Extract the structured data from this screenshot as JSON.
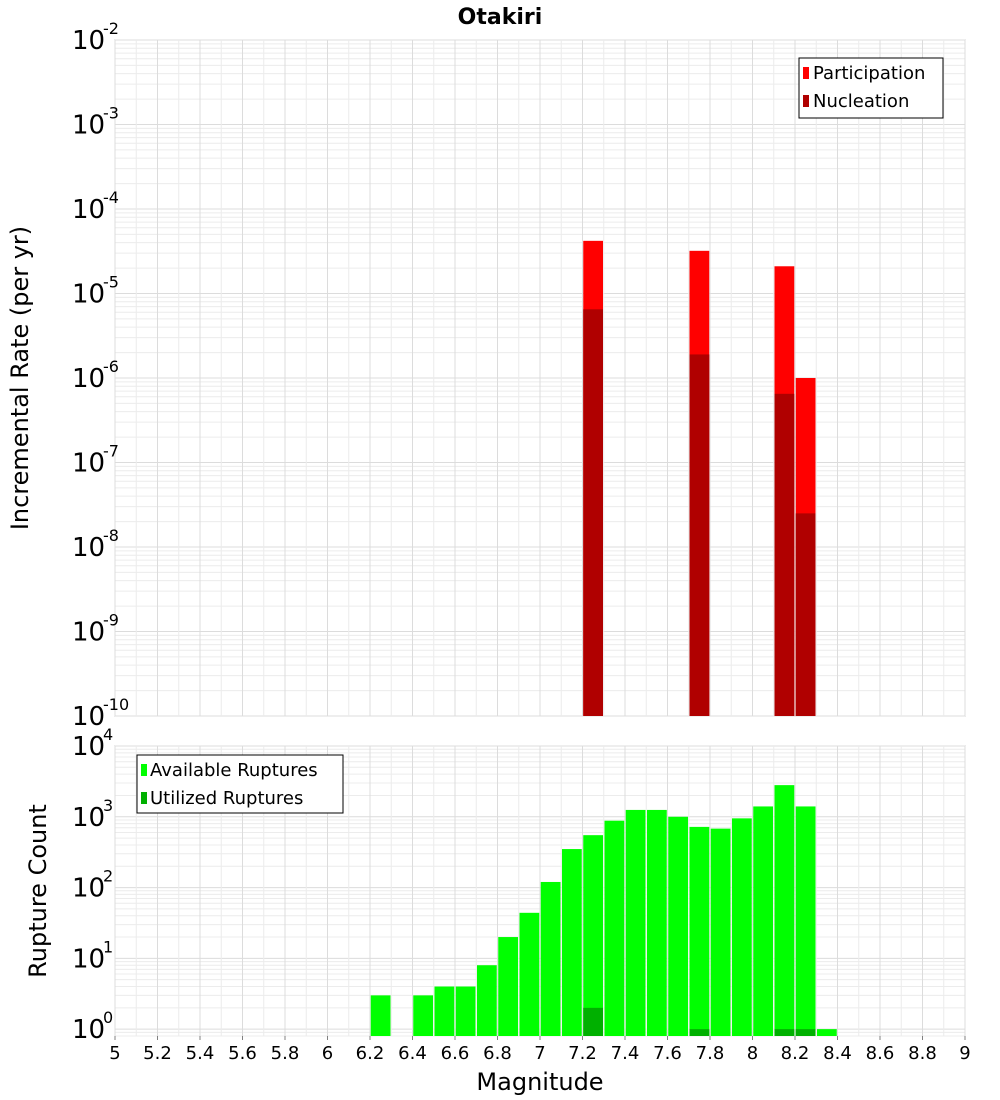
{
  "chart_data": [
    {
      "type": "bar",
      "title": "Otakiri",
      "xlabel": "",
      "ylabel": "Incremental Rate (per yr)",
      "yscale": "log",
      "ylim": [
        1e-10,
        0.01
      ],
      "xlim": [
        5,
        9
      ],
      "grid": true,
      "legend_position": "top-right",
      "series": [
        {
          "name": "Participation",
          "color": "#ff0000",
          "x": [
            7.25,
            7.75,
            8.15,
            8.25
          ],
          "values": [
            4.2e-05,
            3.2e-05,
            2.1e-05,
            1e-06
          ]
        },
        {
          "name": "Nucleation",
          "color": "#b00000",
          "x": [
            7.25,
            7.75,
            8.15,
            8.25
          ],
          "values": [
            6.5e-06,
            1.9e-06,
            6.5e-07,
            2.5e-08
          ]
        }
      ],
      "y_ticks": [
        {
          "base": "10",
          "exp": "-2"
        },
        {
          "base": "10",
          "exp": "-3"
        },
        {
          "base": "10",
          "exp": "-4"
        },
        {
          "base": "10",
          "exp": "-5"
        },
        {
          "base": "10",
          "exp": "-6"
        },
        {
          "base": "10",
          "exp": "-7"
        },
        {
          "base": "10",
          "exp": "-8"
        },
        {
          "base": "10",
          "exp": "-9"
        },
        {
          "base": "10",
          "exp": "-10"
        }
      ]
    },
    {
      "type": "bar",
      "title": "",
      "xlabel": "Magnitude",
      "ylabel": "Rupture Count",
      "yscale": "log",
      "ylim": [
        0.8,
        10000
      ],
      "xlim": [
        5,
        9
      ],
      "grid": true,
      "legend_position": "top-left",
      "series": [
        {
          "name": "Available Ruptures",
          "color": "#00ff00",
          "x": [
            6.25,
            6.45,
            6.55,
            6.65,
            6.75,
            6.85,
            6.95,
            7.05,
            7.15,
            7.25,
            7.35,
            7.45,
            7.55,
            7.65,
            7.75,
            7.85,
            7.95,
            8.05,
            8.15,
            8.25,
            8.35
          ],
          "values": [
            3,
            3,
            4,
            4,
            8,
            20,
            44,
            120,
            350,
            550,
            880,
            1250,
            1250,
            1000,
            720,
            680,
            950,
            1400,
            2800,
            1400,
            1
          ]
        },
        {
          "name": "Utilized Ruptures",
          "color": "#00b000",
          "x": [
            7.25,
            7.75,
            8.15,
            8.25
          ],
          "values": [
            2,
            1,
            1,
            1
          ]
        }
      ],
      "x_ticks": [
        "5",
        "5.2",
        "5.4",
        "5.6",
        "5.8",
        "6",
        "6.2",
        "6.4",
        "6.6",
        "6.8",
        "7",
        "7.2",
        "7.4",
        "7.6",
        "7.8",
        "8",
        "8.2",
        "8.4",
        "8.6",
        "8.8",
        "9"
      ],
      "y_ticks": [
        {
          "base": "10",
          "exp": "4"
        },
        {
          "base": "10",
          "exp": "3"
        },
        {
          "base": "10",
          "exp": "2"
        },
        {
          "base": "10",
          "exp": "1"
        },
        {
          "base": "10",
          "exp": "0"
        }
      ]
    }
  ]
}
